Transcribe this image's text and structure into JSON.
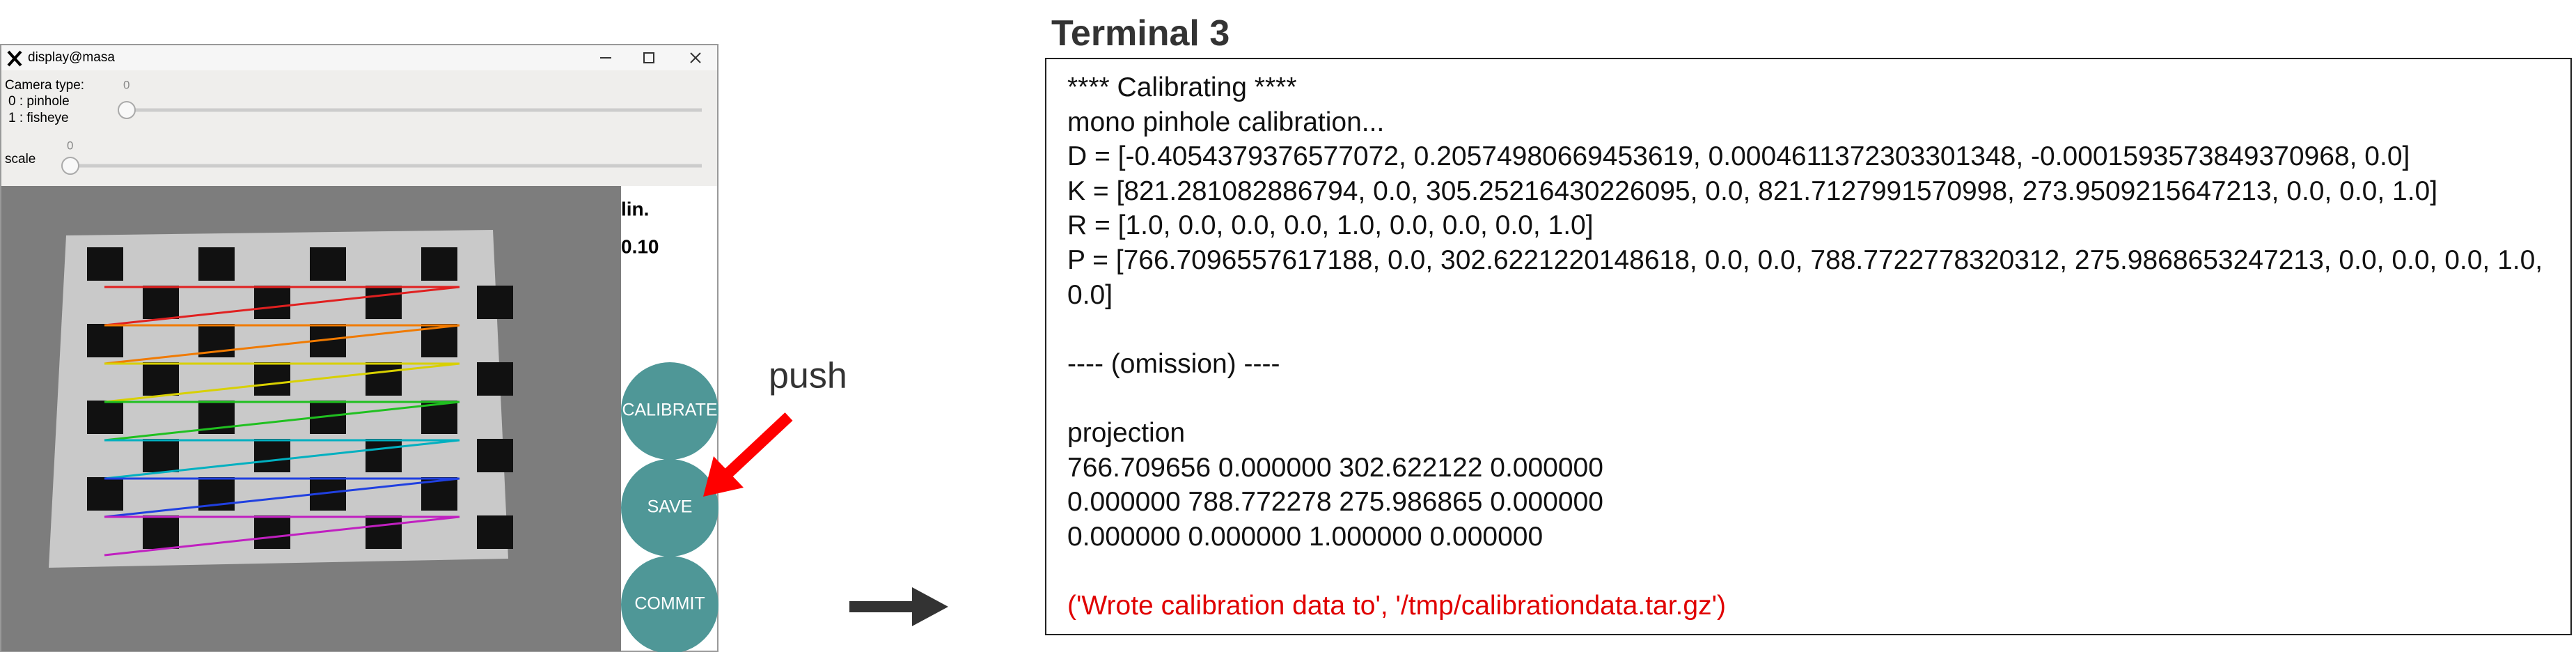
{
  "window": {
    "title": "display@masa",
    "controls": {
      "camera_type_label": "Camera type:",
      "camera_type_value": "0",
      "option_0": "0 : pinhole",
      "option_1": "1 : fisheye",
      "scale_label": "scale",
      "scale_value": "0"
    },
    "panel": {
      "label": "lin.",
      "value": "0.10"
    },
    "buttons": [
      "CALIBRATE",
      "SAVE",
      "COMMIT"
    ]
  },
  "annotation": "push",
  "terminal": {
    "title": "Terminal 3",
    "blocks": [
      [
        "**** Calibrating ****",
        "mono pinhole calibration...",
        "D = [-0.4054379376577072, 0.20574980669453619, 0.0004611372303301348, -0.0001593573849370968, 0.0]",
        "K = [821.281082886794, 0.0, 305.25216430226095, 0.0, 821.7127991570998, 273.9509215647213, 0.0, 0.0, 1.0]",
        "R = [1.0, 0.0, 0.0, 0.0, 1.0, 0.0, 0.0, 0.0, 1.0]",
        "P = [766.7096557617188, 0.0, 302.6221220148618, 0.0, 0.0, 788.7722778320312, 275.9868653247213, 0.0, 0.0, 0.0, 1.0, 0.0]"
      ],
      [
        "---- (omission) ----"
      ],
      [
        "projection",
        "766.709656 0.000000 302.622122 0.000000",
        "0.000000 788.772278 275.986865 0.000000",
        "0.000000 0.000000 1.000000 0.000000"
      ],
      [
        "('Wrote calibration data to', '/tmp/calibrationdata.tar.gz')"
      ]
    ]
  }
}
